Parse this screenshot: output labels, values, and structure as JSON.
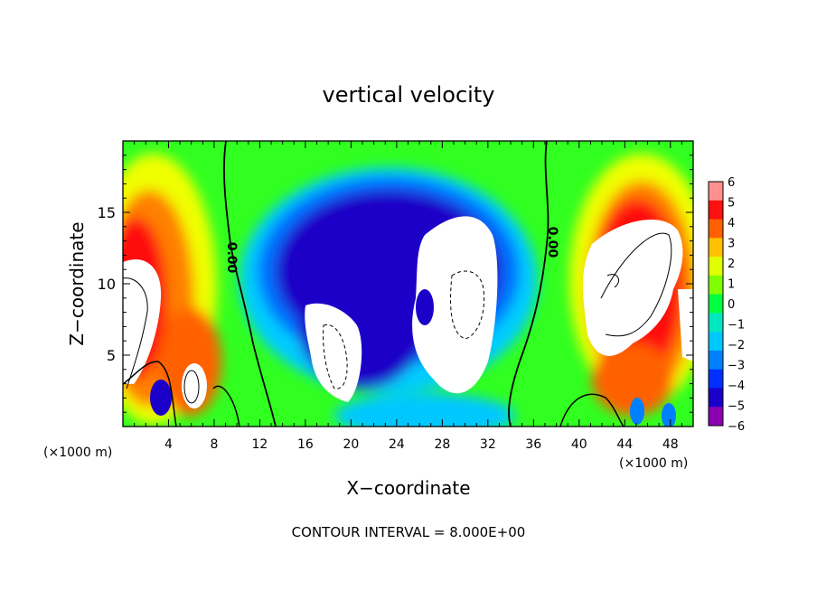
{
  "chart_data": {
    "type": "heatmap",
    "title": "vertical velocity",
    "xlabel": "X−coordinate",
    "ylabel": "Z−coordinate",
    "x_unit_left": "(×1000 m)",
    "x_unit_right": "(×1000 m)",
    "xlim": [
      0,
      50
    ],
    "ylim": [
      0,
      20
    ],
    "x_ticks": [
      "4",
      "8",
      "12",
      "16",
      "20",
      "24",
      "28",
      "32",
      "36",
      "40",
      "44",
      "48"
    ],
    "y_ticks": [
      "5",
      "10",
      "15"
    ],
    "colorbar_labels": [
      "6",
      "5",
      "4",
      "3",
      "2",
      "1",
      "0",
      "−1",
      "−2",
      "−3",
      "−4",
      "−5",
      "−6"
    ],
    "colorbar_range": [
      -6,
      6
    ],
    "contour_labels": [
      "0.00",
      "0.00"
    ],
    "footer": "CONTOUR INTERVAL = 8.000E+00",
    "colors": [
      "#8b00b0",
      "#1a00c8",
      "#0030ff",
      "#0080ff",
      "#00c8ff",
      "#00e8c0",
      "#00ff40",
      "#80ff00",
      "#e0ff00",
      "#ffc000",
      "#ff6000",
      "#ff1010",
      "#ff9090"
    ]
  }
}
